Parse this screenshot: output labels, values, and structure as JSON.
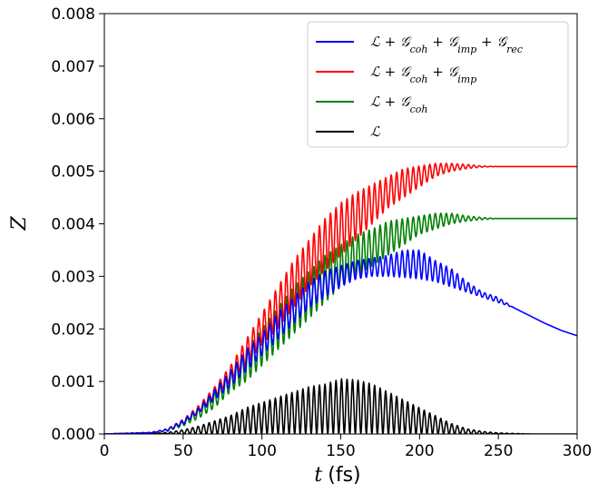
{
  "chart_data": {
    "type": "line",
    "xlabel": "t (fs)",
    "xlabel_var": "t",
    "xlabel_unit": "(fs)",
    "ylabel": "Z",
    "xlim": [
      0,
      300
    ],
    "ylim": [
      0,
      0.008
    ],
    "x_ticks": [
      0,
      50,
      100,
      150,
      200,
      250,
      300
    ],
    "y_ticks": [
      "0.000",
      "0.001",
      "0.002",
      "0.003",
      "0.004",
      "0.005",
      "0.006",
      "0.007",
      "0.008"
    ],
    "grid": false,
    "legend_position": "top-right",
    "series": [
      {
        "name": "ℒ + 𝒢coh + 𝒢imp + 𝒢rec",
        "name_parts": [
          "ℒ + 𝒢",
          "coh",
          " + 𝒢",
          "imp",
          " + 𝒢",
          "rec"
        ],
        "color": "#0000ff",
        "oscillation_period_fs": 3.5,
        "upper_envelope": [
          [
            0,
            0
          ],
          [
            30,
            3e-05
          ],
          [
            40,
            0.0001
          ],
          [
            50,
            0.00027
          ],
          [
            60,
            0.0005
          ],
          [
            70,
            0.00085
          ],
          [
            80,
            0.0012
          ],
          [
            90,
            0.0016
          ],
          [
            100,
            0.0019
          ],
          [
            110,
            0.0023
          ],
          [
            120,
            0.0026
          ],
          [
            130,
            0.0029
          ],
          [
            140,
            0.0031
          ],
          [
            150,
            0.0032
          ],
          [
            160,
            0.0033
          ],
          [
            170,
            0.00335
          ],
          [
            180,
            0.0034
          ],
          [
            190,
            0.0035
          ],
          [
            200,
            0.0035
          ],
          [
            210,
            0.0033
          ],
          [
            220,
            0.00315
          ],
          [
            230,
            0.0029
          ],
          [
            240,
            0.0027
          ],
          [
            250,
            0.0026
          ],
          [
            260,
            0.0024
          ],
          [
            270,
            0.00225
          ],
          [
            280,
            0.0021
          ],
          [
            290,
            0.00197
          ],
          [
            300,
            0.00187
          ]
        ],
        "lower_envelope": [
          [
            0,
            0
          ],
          [
            30,
            2e-05
          ],
          [
            40,
            6e-05
          ],
          [
            50,
            0.00018
          ],
          [
            60,
            0.0004
          ],
          [
            70,
            0.00065
          ],
          [
            80,
            0.0009
          ],
          [
            90,
            0.0012
          ],
          [
            100,
            0.0015
          ],
          [
            110,
            0.0018
          ],
          [
            120,
            0.0021
          ],
          [
            130,
            0.0024
          ],
          [
            140,
            0.0026
          ],
          [
            150,
            0.0028
          ],
          [
            160,
            0.00295
          ],
          [
            170,
            0.003
          ],
          [
            180,
            0.003
          ],
          [
            190,
            0.00298
          ],
          [
            200,
            0.00295
          ],
          [
            210,
            0.0029
          ],
          [
            220,
            0.0028
          ],
          [
            230,
            0.0027
          ],
          [
            240,
            0.0026
          ],
          [
            250,
            0.0025
          ],
          [
            260,
            0.0024
          ],
          [
            270,
            0.00225
          ],
          [
            280,
            0.0021
          ],
          [
            290,
            0.00197
          ],
          [
            300,
            0.00187
          ]
        ]
      },
      {
        "name": "ℒ + 𝒢coh + 𝒢imp",
        "name_parts": [
          "ℒ + 𝒢",
          "coh",
          " + 𝒢",
          "imp"
        ],
        "color": "#ff0000",
        "oscillation_period_fs": 3.5,
        "upper_envelope": [
          [
            0,
            0
          ],
          [
            30,
            3e-05
          ],
          [
            40,
            0.0001
          ],
          [
            50,
            0.00028
          ],
          [
            60,
            0.00055
          ],
          [
            70,
            0.0009
          ],
          [
            80,
            0.0013
          ],
          [
            90,
            0.0018
          ],
          [
            100,
            0.0023
          ],
          [
            110,
            0.0028
          ],
          [
            120,
            0.0033
          ],
          [
            130,
            0.0037
          ],
          [
            140,
            0.0041
          ],
          [
            150,
            0.0044
          ],
          [
            160,
            0.0046
          ],
          [
            170,
            0.00475
          ],
          [
            180,
            0.0049
          ],
          [
            190,
            0.00505
          ],
          [
            200,
            0.0051
          ],
          [
            210,
            0.00515
          ],
          [
            220,
            0.00515
          ],
          [
            230,
            0.00513
          ],
          [
            240,
            0.0051
          ],
          [
            250,
            0.00509
          ],
          [
            300,
            0.00509
          ]
        ],
        "lower_envelope": [
          [
            0,
            0
          ],
          [
            30,
            2e-05
          ],
          [
            40,
            6e-05
          ],
          [
            50,
            0.00018
          ],
          [
            60,
            0.0004
          ],
          [
            70,
            0.0007
          ],
          [
            80,
            0.001
          ],
          [
            90,
            0.0013
          ],
          [
            100,
            0.0017
          ],
          [
            110,
            0.002
          ],
          [
            120,
            0.0024
          ],
          [
            130,
            0.0028
          ],
          [
            140,
            0.0031
          ],
          [
            150,
            0.0034
          ],
          [
            160,
            0.0037
          ],
          [
            170,
            0.004
          ],
          [
            180,
            0.0043
          ],
          [
            190,
            0.0045
          ],
          [
            200,
            0.0047
          ],
          [
            210,
            0.0049
          ],
          [
            220,
            0.005
          ],
          [
            230,
            0.00505
          ],
          [
            240,
            0.00508
          ],
          [
            250,
            0.00509
          ],
          [
            300,
            0.00509
          ]
        ]
      },
      {
        "name": "ℒ + 𝒢coh",
        "name_parts": [
          "ℒ + 𝒢",
          "coh"
        ],
        "color": "#008000",
        "oscillation_period_fs": 3.5,
        "upper_envelope": [
          [
            0,
            0
          ],
          [
            30,
            3e-05
          ],
          [
            40,
            0.0001
          ],
          [
            50,
            0.00025
          ],
          [
            60,
            0.0005
          ],
          [
            70,
            0.0008
          ],
          [
            80,
            0.0012
          ],
          [
            90,
            0.0016
          ],
          [
            100,
            0.002
          ],
          [
            110,
            0.0024
          ],
          [
            120,
            0.0028
          ],
          [
            130,
            0.0031
          ],
          [
            140,
            0.0034
          ],
          [
            150,
            0.0036
          ],
          [
            160,
            0.0038
          ],
          [
            170,
            0.0039
          ],
          [
            180,
            0.00405
          ],
          [
            190,
            0.0041
          ],
          [
            200,
            0.00415
          ],
          [
            210,
            0.0042
          ],
          [
            220,
            0.0042
          ],
          [
            230,
            0.00415
          ],
          [
            240,
            0.00412
          ],
          [
            250,
            0.0041
          ],
          [
            300,
            0.0041
          ]
        ],
        "lower_envelope": [
          [
            0,
            0
          ],
          [
            30,
            2e-05
          ],
          [
            40,
            5e-05
          ],
          [
            50,
            0.00015
          ],
          [
            60,
            0.0003
          ],
          [
            70,
            0.0005
          ],
          [
            80,
            0.0008
          ],
          [
            90,
            0.001
          ],
          [
            100,
            0.0013
          ],
          [
            110,
            0.0016
          ],
          [
            120,
            0.0019
          ],
          [
            130,
            0.0022
          ],
          [
            140,
            0.0025
          ],
          [
            150,
            0.0028
          ],
          [
            160,
            0.003
          ],
          [
            170,
            0.0032
          ],
          [
            180,
            0.0034
          ],
          [
            190,
            0.0036
          ],
          [
            200,
            0.0038
          ],
          [
            210,
            0.0039
          ],
          [
            220,
            0.004
          ],
          [
            230,
            0.00405
          ],
          [
            240,
            0.00408
          ],
          [
            250,
            0.0041
          ],
          [
            300,
            0.0041
          ]
        ]
      },
      {
        "name": "ℒ",
        "name_parts": [
          "ℒ"
        ],
        "color": "#000000",
        "oscillation_period_fs": 3.5,
        "upper_envelope": [
          [
            0,
            0
          ],
          [
            30,
            1e-05
          ],
          [
            40,
            3e-05
          ],
          [
            50,
            8e-05
          ],
          [
            60,
            0.00015
          ],
          [
            70,
            0.00025
          ],
          [
            80,
            0.00035
          ],
          [
            90,
            0.0005
          ],
          [
            100,
            0.0006
          ],
          [
            110,
            0.0007
          ],
          [
            120,
            0.0008
          ],
          [
            130,
            0.0009
          ],
          [
            140,
            0.00095
          ],
          [
            150,
            0.00105
          ],
          [
            160,
            0.00103
          ],
          [
            170,
            0.00095
          ],
          [
            180,
            0.0008
          ],
          [
            190,
            0.00065
          ],
          [
            200,
            0.0005
          ],
          [
            210,
            0.00035
          ],
          [
            220,
            0.0002
          ],
          [
            230,
            0.0001
          ],
          [
            240,
            5e-05
          ],
          [
            250,
            2e-05
          ],
          [
            260,
            1e-05
          ],
          [
            270,
            0
          ],
          [
            300,
            0
          ]
        ],
        "lower_envelope": [
          [
            0,
            0
          ],
          [
            300,
            0
          ]
        ]
      }
    ]
  }
}
